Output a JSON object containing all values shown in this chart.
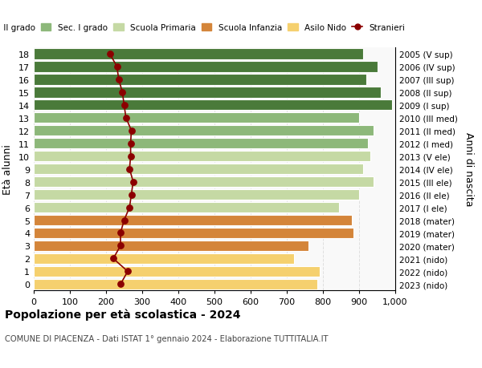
{
  "ages": [
    0,
    1,
    2,
    3,
    4,
    5,
    6,
    7,
    8,
    9,
    10,
    11,
    12,
    13,
    14,
    15,
    16,
    17,
    18
  ],
  "years_labels": [
    "2023 (nido)",
    "2022 (nido)",
    "2021 (nido)",
    "2020 (mater)",
    "2019 (mater)",
    "2018 (mater)",
    "2017 (I ele)",
    "2016 (II ele)",
    "2015 (III ele)",
    "2014 (IV ele)",
    "2013 (V ele)",
    "2012 (I med)",
    "2011 (II med)",
    "2010 (III med)",
    "2009 (I sup)",
    "2008 (II sup)",
    "2007 (III sup)",
    "2006 (IV sup)",
    "2005 (V sup)"
  ],
  "bar_values": [
    785,
    790,
    720,
    760,
    885,
    880,
    845,
    900,
    940,
    910,
    930,
    925,
    940,
    900,
    990,
    960,
    920,
    950,
    910
  ],
  "bar_colors": [
    "#f5d06e",
    "#f5d06e",
    "#f5d06e",
    "#d4853a",
    "#d4853a",
    "#d4853a",
    "#c5d9a4",
    "#c5d9a4",
    "#c5d9a4",
    "#c5d9a4",
    "#c5d9a4",
    "#8db87a",
    "#8db87a",
    "#8db87a",
    "#4a7a3a",
    "#4a7a3a",
    "#4a7a3a",
    "#4a7a3a",
    "#4a7a3a"
  ],
  "stranieri_values": [
    240,
    260,
    220,
    240,
    240,
    250,
    265,
    270,
    275,
    265,
    268,
    268,
    270,
    255,
    250,
    245,
    235,
    230,
    210
  ],
  "legend_labels": [
    "Sec. II grado",
    "Sec. I grado",
    "Scuola Primaria",
    "Scuola Infanzia",
    "Asilo Nido",
    "Stranieri"
  ],
  "legend_colors": [
    "#4a7a3a",
    "#8db87a",
    "#c5d9a4",
    "#d4853a",
    "#f5d06e",
    "#8b0000"
  ],
  "title": "Popolazione per età scolastica - 2024",
  "subtitle": "COMUNE DI PIACENZA - Dati ISTAT 1° gennaio 2024 - Elaborazione TUTTITALIA.IT",
  "ylabel_left": "Età alunni",
  "ylabel_right": "Anni di nascita",
  "xlim": [
    0,
    1000
  ],
  "xticks": [
    0,
    100,
    200,
    300,
    400,
    500,
    600,
    700,
    800,
    900,
    1000
  ],
  "xticklabels": [
    "0",
    "100",
    "200",
    "300",
    "400",
    "500",
    "600",
    "700",
    "800",
    "900",
    "1,000"
  ],
  "background_color": "#ffffff",
  "plot_bg_color": "#f9f9f9",
  "grid_color": "#e0e0e0"
}
